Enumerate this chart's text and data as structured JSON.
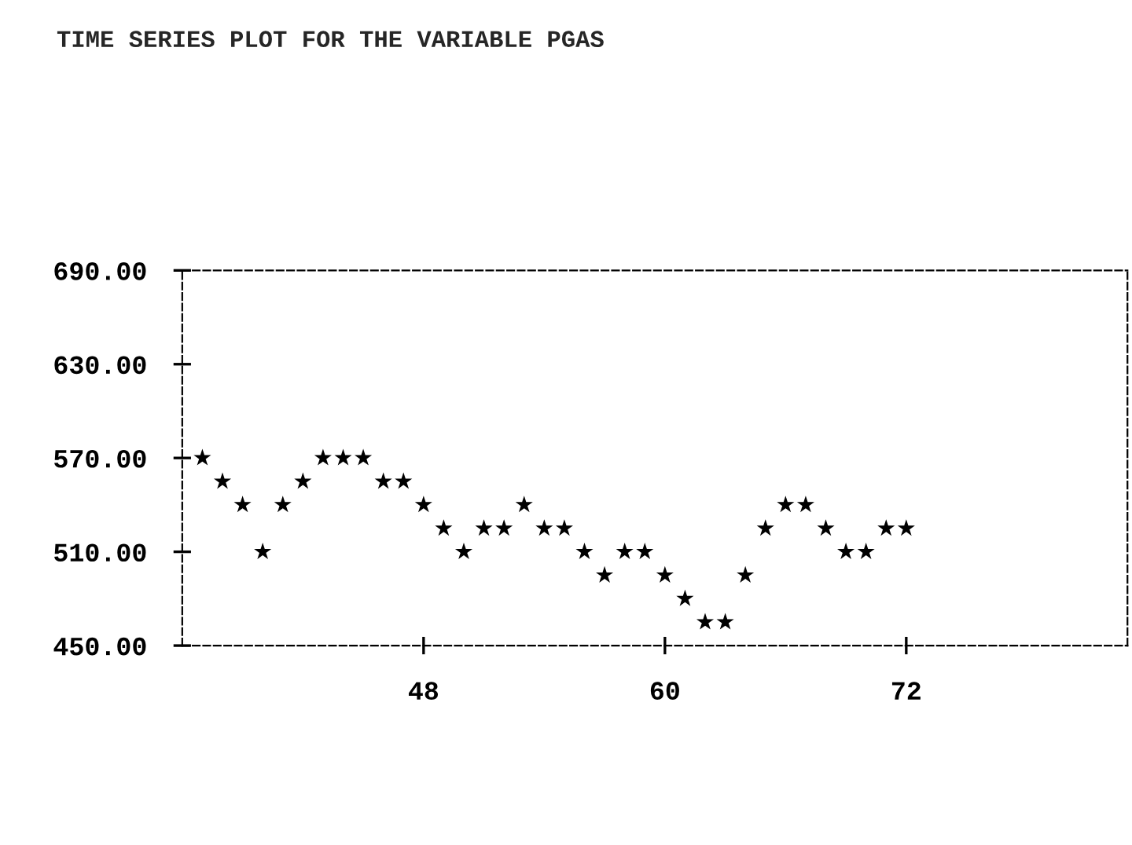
{
  "chart_data": {
    "type": "scatter",
    "title": "TIME SERIES PLOT FOR THE VARIABLE PGAS",
    "x": [
      37,
      38,
      39,
      40,
      41,
      42,
      43,
      44,
      45,
      46,
      47,
      48,
      49,
      50,
      51,
      52,
      53,
      54,
      55,
      56,
      57,
      58,
      59,
      60,
      61,
      62,
      63,
      64,
      65,
      66,
      67,
      68,
      69,
      70,
      71,
      72
    ],
    "series": [
      {
        "color": "#000000",
        "values": [
          570,
          555,
          540,
          510,
          540,
          555,
          570,
          570,
          570,
          555,
          555,
          540,
          525,
          510,
          525,
          525,
          540,
          525,
          525,
          510,
          495,
          510,
          510,
          495,
          480,
          465,
          465,
          495,
          525,
          540,
          540,
          525,
          510,
          510,
          525,
          525
        ]
      }
    ],
    "xlim": [
      36,
      83
    ],
    "xticks": [
      48,
      60,
      72
    ],
    "ylim": [
      450,
      690
    ],
    "yticks": [
      {
        "value": 450,
        "label": "450.00"
      },
      {
        "value": 510,
        "label": "510.00"
      },
      {
        "value": 570,
        "label": "570.00"
      },
      {
        "value": 630,
        "label": "630.00"
      },
      {
        "value": 690,
        "label": "690.00"
      }
    ],
    "marker": "star",
    "grid": false,
    "legend": false
  }
}
